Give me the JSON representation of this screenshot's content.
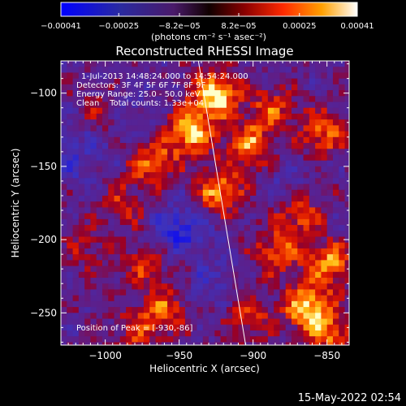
{
  "chart_data": {
    "type": "heatmap",
    "title": "Reconstructed RHESSI Image",
    "xlabel": "Heliocentric X (arcsec)",
    "ylabel": "Heliocentric Y (arcsec)",
    "xlim": [
      -1030,
      -835
    ],
    "ylim": [
      -272,
      -78
    ],
    "x_ticks": [
      -1000,
      -950,
      -900,
      -850
    ],
    "y_ticks": [
      -100,
      -150,
      -200,
      -250
    ],
    "x_tick_labels": [
      "−1000",
      "−950",
      "−900",
      "−850"
    ],
    "y_tick_labels": [
      "−100",
      "−150",
      "−200",
      "−250"
    ],
    "colorbar": {
      "range": [
        -0.00041,
        0.00041
      ],
      "tick_values": [
        -0.00041,
        -0.00025,
        -8.2e-05,
        8.2e-05,
        0.00025,
        0.00041
      ],
      "tick_labels": [
        "−0.00041",
        "−0.00025",
        "−8.2e−05",
        "8.2e−05",
        "0.00025",
        "0.00041"
      ],
      "unit_label": "(photons cm⁻² s⁻¹ asec⁻²)"
    },
    "limb_line": {
      "x": [
        -937,
        -905
      ],
      "y": [
        -78,
        -272
      ]
    },
    "info_lines": [
      "1-Jul-2013 14:48:24.000 to 14:54:24.000",
      "Detectors: 3F 4F 5F 6F 7F 8F 9F",
      "Energy Range: 25.0 - 50.0 keV",
      "Clean    Total counts: 1.33e+04"
    ],
    "peak_label": "Position of Peak = [-930,-86]",
    "peak_position": [
      -930,
      -86
    ],
    "hot_regions": [
      {
        "x": -928,
        "y": -100,
        "intensity": 1.0
      },
      {
        "x": -945,
        "y": -125,
        "intensity": 0.85
      },
      {
        "x": -970,
        "y": -145,
        "intensity": 0.65
      },
      {
        "x": -905,
        "y": -135,
        "intensity": 0.7
      },
      {
        "x": -925,
        "y": -165,
        "intensity": 0.75
      },
      {
        "x": -890,
        "y": -110,
        "intensity": 0.55
      },
      {
        "x": -855,
        "y": -125,
        "intensity": 0.6
      },
      {
        "x": -870,
        "y": -180,
        "intensity": 0.55
      },
      {
        "x": -885,
        "y": -205,
        "intensity": 0.6
      },
      {
        "x": -850,
        "y": -215,
        "intensity": 0.75
      },
      {
        "x": -865,
        "y": -245,
        "intensity": 0.9
      },
      {
        "x": -850,
        "y": -262,
        "intensity": 0.6
      },
      {
        "x": -990,
        "y": -175,
        "intensity": 0.4
      },
      {
        "x": -1015,
        "y": -205,
        "intensity": 0.3
      },
      {
        "x": -960,
        "y": -245,
        "intensity": 0.55
      },
      {
        "x": -945,
        "y": -210,
        "intensity": 0.35
      },
      {
        "x": -980,
        "y": -260,
        "intensity": 0.45
      },
      {
        "x": -905,
        "y": -250,
        "intensity": 0.5
      },
      {
        "x": -1005,
        "y": -110,
        "intensity": 0.35
      },
      {
        "x": -975,
        "y": -215,
        "intensity": 0.45
      }
    ],
    "cold_regions": [
      {
        "x": -950,
        "y": -195,
        "intensity": 1.0
      },
      {
        "x": -1020,
        "y": -140,
        "intensity": 0.5
      },
      {
        "x": -985,
        "y": -110,
        "intensity": 0.4
      },
      {
        "x": -935,
        "y": -225,
        "intensity": 0.45
      },
      {
        "x": -880,
        "y": -160,
        "intensity": 0.3
      }
    ]
  },
  "timestamp": "15-May-2022 02:54"
}
